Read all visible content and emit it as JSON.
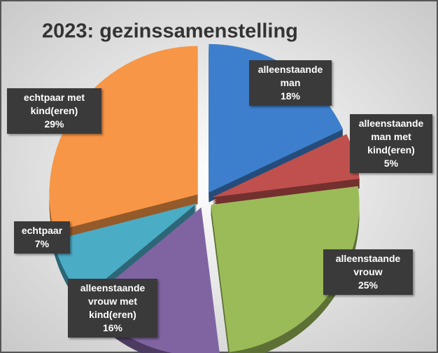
{
  "chart_data": {
    "type": "pie",
    "title": "2023: gezinssamenstelling",
    "categories": [
      "alleenstaande man",
      "alleenstaande man met kind(eren)",
      "alleenstaande vrouw",
      "alleenstaande vrouw met kind(eren)",
      "echtpaar",
      "echtpaar met kind(eren)"
    ],
    "values": [
      18,
      5,
      25,
      16,
      7,
      29
    ],
    "value_labels": [
      "18%",
      "5%",
      "25%",
      "16%",
      "7%",
      "29%"
    ],
    "colors": [
      "#3d7fcc",
      "#c0504d",
      "#9bbb59",
      "#8064a2",
      "#4bacc6",
      "#f79646"
    ]
  }
}
